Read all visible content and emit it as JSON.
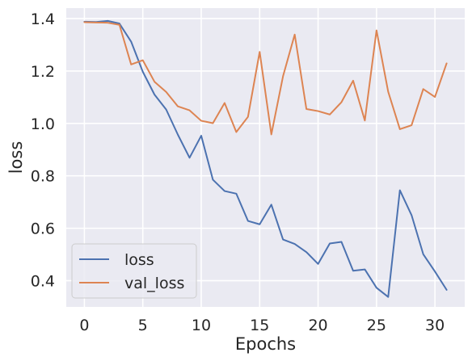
{
  "chart_data": {
    "type": "line",
    "title": "",
    "xlabel": "Epochs",
    "ylabel": "loss",
    "xlim": [
      -1.55,
      32.55
    ],
    "ylim": [
      0.3,
      1.44
    ],
    "x_ticks": [
      0,
      5,
      10,
      15,
      20,
      25,
      30
    ],
    "y_ticks": [
      0.4,
      0.6,
      0.8,
      1.0,
      1.2,
      1.4
    ],
    "grid": true,
    "legend_position": "lower-left",
    "style": {
      "background": "#eaeaf2",
      "grid_color": "#ffffff"
    },
    "x": [
      0,
      1,
      2,
      3,
      4,
      5,
      6,
      7,
      8,
      9,
      10,
      11,
      12,
      13,
      14,
      15,
      16,
      17,
      18,
      19,
      20,
      21,
      22,
      23,
      24,
      25,
      26,
      27,
      28,
      29,
      30,
      31
    ],
    "series": [
      {
        "name": "loss",
        "color": "#4c72b0",
        "values": [
          1.388,
          1.387,
          1.391,
          1.381,
          1.312,
          1.197,
          1.11,
          1.053,
          0.957,
          0.869,
          0.953,
          0.785,
          0.742,
          0.732,
          0.628,
          0.615,
          0.69,
          0.557,
          0.54,
          0.509,
          0.464,
          0.542,
          0.548,
          0.438,
          0.443,
          0.373,
          0.338,
          0.745,
          0.65,
          0.501,
          0.435,
          0.365
        ]
      },
      {
        "name": "val_loss",
        "color": "#dd8452",
        "values": [
          1.386,
          1.385,
          1.384,
          1.376,
          1.225,
          1.241,
          1.159,
          1.12,
          1.065,
          1.05,
          1.01,
          1.001,
          1.078,
          0.967,
          1.025,
          1.273,
          0.958,
          1.18,
          1.339,
          1.055,
          1.047,
          1.034,
          1.081,
          1.163,
          1.011,
          1.355,
          1.121,
          0.978,
          0.993,
          1.131,
          1.101,
          1.229
        ]
      }
    ]
  }
}
